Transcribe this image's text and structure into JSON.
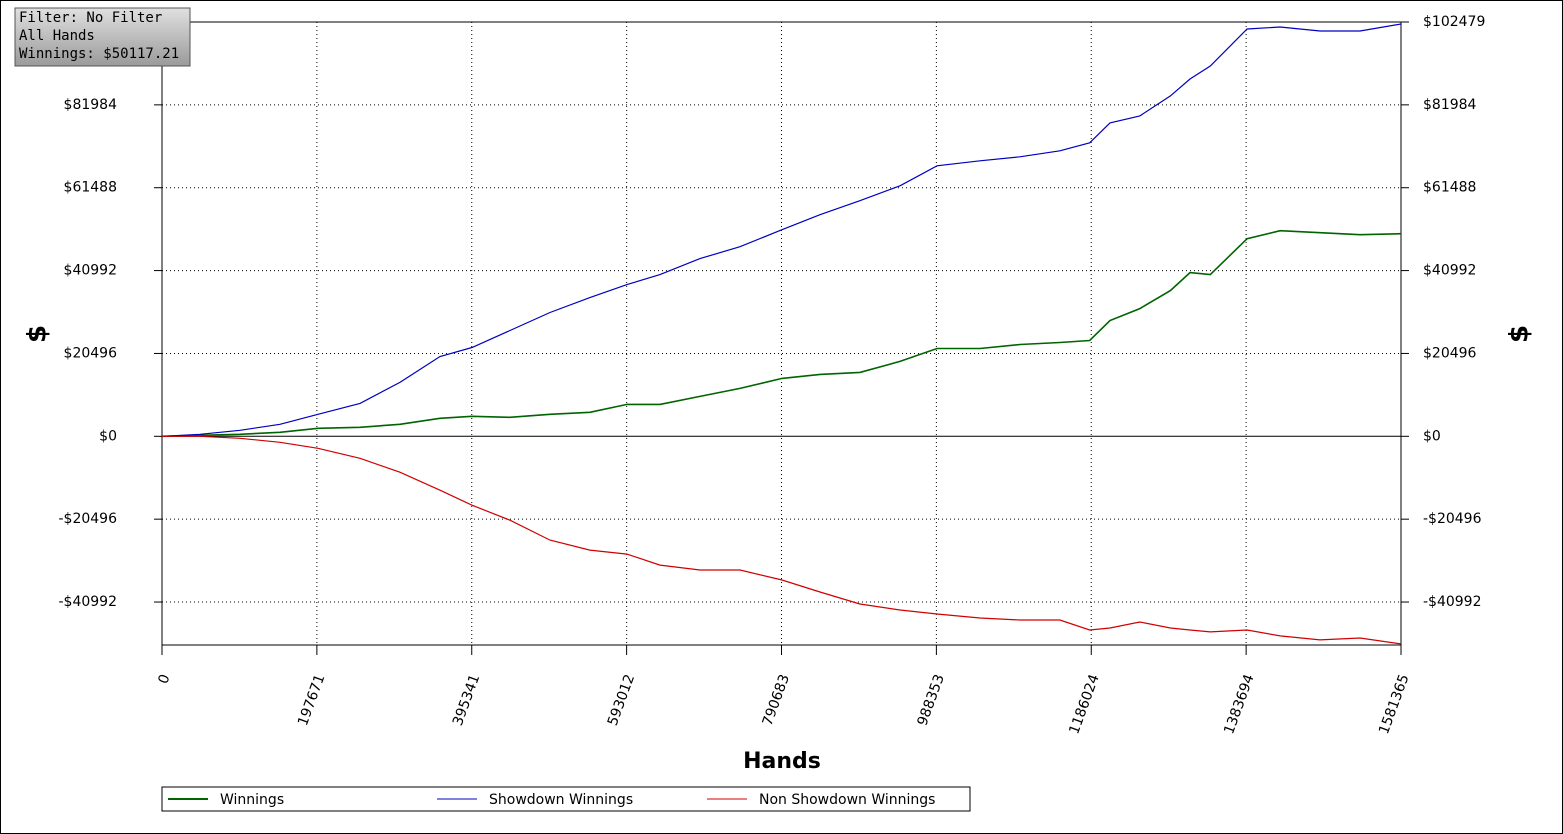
{
  "chart_data": {
    "type": "line",
    "info": [
      "Filter: No Filter",
      "All Hands",
      "Winnings: $50117.21"
    ],
    "xlabel": "Hands",
    "ylabel": "$",
    "y2label": "$",
    "x": [
      0,
      48500,
      99550,
      150600,
      199100,
      252700,
      303700,
      354800,
      395600,
      444100,
      495200,
      546200,
      593500,
      635600,
      686600,
      737700,
      791300,
      839800,
      890800,
      941900,
      989100,
      1044000,
      1095000,
      1146000,
      1184000,
      1210000,
      1248000,
      1287000,
      1312000,
      1338000,
      1385000,
      1427000,
      1478000,
      1529000,
      1581365
    ],
    "series": [
      {
        "name": "Winnings",
        "color": "#006400",
        "values": [
          0,
          247,
          494,
          988,
          1975,
          2222,
          2963,
          4444,
          4938,
          4691,
          5432,
          5926,
          7901,
          7901,
          9877,
          11850,
          14320,
          15310,
          15800,
          18520,
          21730,
          21730,
          22720,
          23210,
          23700,
          28640,
          31600,
          36050,
          40490,
          40000,
          48890,
          50860,
          50370,
          49880,
          50117
        ]
      },
      {
        "name": "Showdown Winnings",
        "color": "#0000c0",
        "values": [
          0,
          494,
          1481,
          2963,
          5432,
          8148,
          13333,
          19752,
          21975,
          26172,
          30617,
          34320,
          37530,
          40000,
          43950,
          46910,
          51110,
          54810,
          58270,
          61970,
          66910,
          68140,
          69130,
          70610,
          72590,
          77530,
          79250,
          84190,
          88390,
          91600,
          100740,
          101240,
          100250,
          100250,
          101980
        ]
      },
      {
        "name": "Non Showdown Winnings",
        "color": "#d00000",
        "values": [
          0,
          0,
          -494,
          -1481,
          -2963,
          -5432,
          -8888,
          -13330,
          -17040,
          -20740,
          -25680,
          -28150,
          -29130,
          -31850,
          -33080,
          -33080,
          -35550,
          -38510,
          -41480,
          -42960,
          -43950,
          -44940,
          -45430,
          -45430,
          -47900,
          -47410,
          -45930,
          -47410,
          -47900,
          -48390,
          -47900,
          -49380,
          -50370,
          -49880,
          -51360
        ]
      }
    ],
    "xlim": [
      0,
      1581365
    ],
    "xticks": [
      0,
      197671,
      395341,
      593012,
      790683,
      988353,
      1186024,
      1383694,
      1581365
    ],
    "ylim": [
      -51620,
      102479
    ],
    "yticks": [
      {
        "value": -40992,
        "label": "-$40992"
      },
      {
        "value": -20496,
        "label": "-$20496"
      },
      {
        "value": 0,
        "label": "$0"
      },
      {
        "value": 20496,
        "label": "$20496"
      },
      {
        "value": 40992,
        "label": "$40992"
      },
      {
        "value": 61488,
        "label": "$61488"
      },
      {
        "value": 81984,
        "label": "$81984"
      },
      {
        "value": 102479,
        "label": "$102479"
      }
    ],
    "grid": true
  }
}
